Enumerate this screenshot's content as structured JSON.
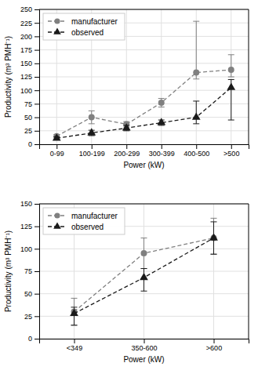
{
  "chart_data": [
    {
      "type": "line",
      "xlabel": "Power (kW)",
      "ylabel": "Productivity (m³ PMH⁻¹)",
      "categories": [
        "0-99",
        "100-199",
        "200-299",
        "300-399",
        "400-500",
        ">500"
      ],
      "series": [
        {
          "name": "manufacturer",
          "color": "#808080",
          "marker": "circle",
          "line_style": "dashed",
          "values": [
            15,
            50,
            37,
            77,
            133,
            138
          ],
          "error_lo": [
            3,
            12,
            5,
            8,
            12,
            13
          ],
          "error_hi": [
            3,
            12,
            5,
            8,
            95,
            28
          ]
        },
        {
          "name": "observed",
          "color": "#1a1a1a",
          "marker": "triangle",
          "line_style": "dashed",
          "values": [
            11,
            21,
            30,
            40,
            50,
            105
          ],
          "error_lo": [
            3,
            5,
            5,
            5,
            12,
            60
          ],
          "error_hi": [
            3,
            5,
            5,
            5,
            30,
            15
          ]
        }
      ],
      "ylim": [
        0,
        250
      ],
      "yticks": [
        0,
        25,
        50,
        75,
        100,
        125,
        150,
        175,
        200,
        225,
        250
      ],
      "grid": true,
      "legend": "upper left"
    },
    {
      "type": "line",
      "xlabel": "Power (kW)",
      "ylabel": "Productivity (m³ PMH⁻¹)",
      "categories": [
        "<349",
        "350-600",
        ">600"
      ],
      "series": [
        {
          "name": "manufacturer",
          "color": "#808080",
          "marker": "circle",
          "line_style": "dashed",
          "values": [
            30,
            95,
            112
          ],
          "error_lo": [
            15,
            17,
            18
          ],
          "error_hi": [
            15,
            17,
            22
          ]
        },
        {
          "name": "observed",
          "color": "#1a1a1a",
          "marker": "triangle",
          "line_style": "dashed",
          "values": [
            28,
            68,
            112
          ],
          "error_lo": [
            13,
            15,
            18
          ],
          "error_hi": [
            7,
            10,
            18
          ]
        }
      ],
      "ylim": [
        0,
        150
      ],
      "yticks": [
        0,
        25,
        50,
        75,
        100,
        125,
        150
      ],
      "grid": true,
      "legend": "upper left"
    }
  ]
}
